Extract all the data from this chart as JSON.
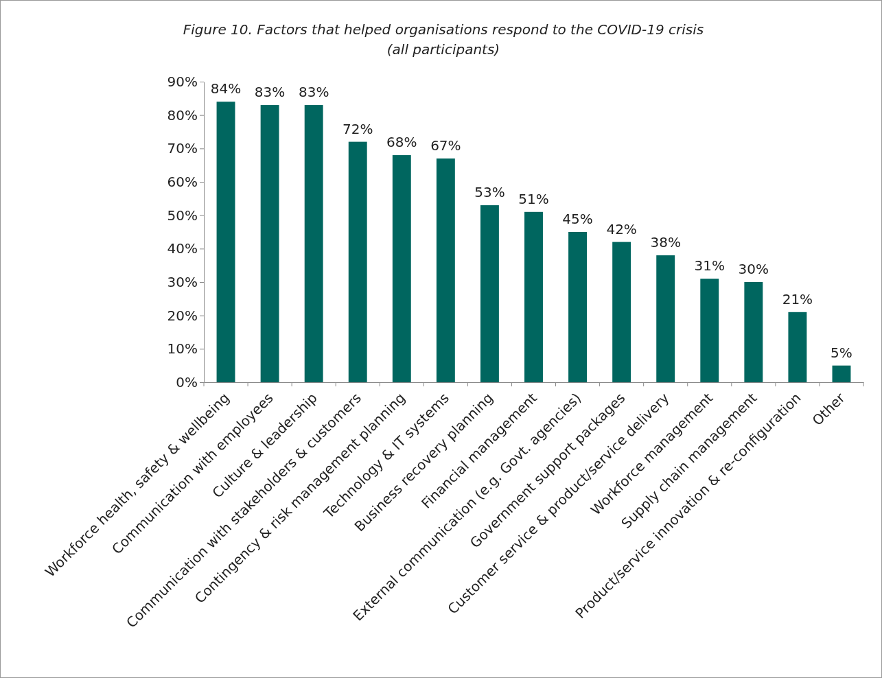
{
  "chart_data": {
    "type": "bar",
    "title": "Figure 10. Factors that helped organisations respond to the COVID-19 crisis",
    "subtitle": "(all participants)",
    "categories": [
      "Workforce health, safety & wellbeing",
      "Communication with employees",
      "Culture & leadership",
      "Communication with stakeholders & customers",
      "Contingency & risk management planning",
      "Technology & IT systems",
      "Business recovery planning",
      "Financial management",
      "External communication (e.g. Govt. agencies)",
      "Government support packages",
      "Customer service & product/service delivery",
      "Workforce management",
      "Supply chain management",
      "Product/service innovation & re-configuration",
      "Other"
    ],
    "values": [
      84,
      83,
      83,
      72,
      68,
      67,
      53,
      51,
      45,
      42,
      38,
      31,
      30,
      21,
      5
    ],
    "value_labels": [
      "84%",
      "83%",
      "83%",
      "72%",
      "68%",
      "67%",
      "53%",
      "51%",
      "45%",
      "42%",
      "38%",
      "31%",
      "30%",
      "21%",
      "5%"
    ],
    "color": "#00665f",
    "ylim": [
      0,
      90
    ],
    "yticks": [
      {
        "value": 0,
        "label": "0%"
      },
      {
        "value": 10,
        "label": "10%"
      },
      {
        "value": 20,
        "label": "20%"
      },
      {
        "value": 30,
        "label": "30%"
      },
      {
        "value": 40,
        "label": "40%"
      },
      {
        "value": 50,
        "label": "50%"
      },
      {
        "value": 60,
        "label": "60%"
      },
      {
        "value": 70,
        "label": "70%"
      },
      {
        "value": 80,
        "label": "80%"
      },
      {
        "value": 90,
        "label": "90%"
      }
    ]
  }
}
